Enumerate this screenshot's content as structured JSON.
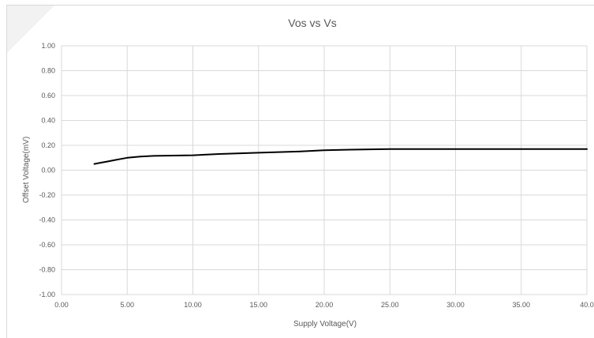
{
  "chart_data": {
    "type": "line",
    "title": "Vos vs Vs",
    "xlabel": "Supply Voltage(V)",
    "ylabel": "Offset Voltage(mV)",
    "xlim": [
      0,
      40
    ],
    "ylim": [
      -1,
      1
    ],
    "x_ticks": [
      "0.00",
      "5.00",
      "10.00",
      "15.00",
      "20.00",
      "25.00",
      "30.00",
      "35.00",
      "40.0"
    ],
    "y_ticks": [
      "1.00",
      "0.80",
      "0.60",
      "0.40",
      "0.20",
      "0.00",
      "-0.20",
      "-0.40",
      "-0.60",
      "-0.80",
      "-1.00"
    ],
    "grid": "vertical and horizontal",
    "legend": "none",
    "series": [
      {
        "color": "#000000",
        "x": [
          2.5,
          3,
          3.5,
          4,
          4.5,
          5,
          6,
          7,
          8,
          10,
          12,
          15,
          18,
          20,
          22,
          25,
          28,
          30,
          35,
          40
        ],
        "y": [
          0.05,
          0.06,
          0.07,
          0.08,
          0.09,
          0.1,
          0.11,
          0.115,
          0.117,
          0.12,
          0.13,
          0.14,
          0.15,
          0.16,
          0.165,
          0.17,
          0.17,
          0.17,
          0.17,
          0.17
        ]
      }
    ]
  }
}
